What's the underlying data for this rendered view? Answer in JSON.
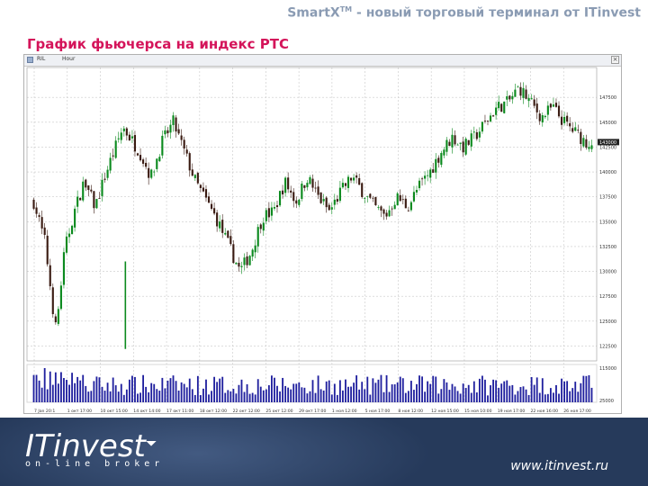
{
  "header": {
    "title": "Smart",
    "title_x": "X",
    "title_tm": "TM",
    "title_rest": " - новый торговый терминал от ITinvest"
  },
  "slide": {
    "subtitle": "График фьючерса на индекс РТС"
  },
  "window": {
    "ticker": "RIL",
    "period": "Hour",
    "close_glyph": "×"
  },
  "chart_data": {
    "type": "candlestick",
    "title": "",
    "y_tick_labels": [
      "147500",
      "145000",
      "142500",
      "140000",
      "137500",
      "135000",
      "132500",
      "130000",
      "127500",
      "125000",
      "122500"
    ],
    "y_tick_values": [
      147500,
      145000,
      142500,
      140000,
      137500,
      135000,
      132500,
      130000,
      127500,
      125000,
      122500
    ],
    "last_price_label": "143000",
    "ylim": [
      121000,
      150500
    ],
    "x_tick_labels": [
      "7 Jan 20:1",
      "1 окт 17:00",
      "10 окт 15:00",
      "14 окт 14:00",
      "17 окт 11:00",
      "18 окт 12:00",
      "22 окт 12:00",
      "25 окт 12:00",
      "29 окт 17:00",
      "1 ноя 12:00",
      "5 ноя 17:00",
      "8 ноя 12:00",
      "12 ноя 15:00",
      "15 ноя 10:00",
      "19 ноя 17:00",
      "22 ноя 16:00",
      "26 ноя 17:00"
    ],
    "volume_top_label": "115000",
    "volume_bottom_label": "25000",
    "grid": true,
    "colors": {
      "up": "#0b8a1e",
      "down": "#3a1b12",
      "volume": "#1f1f9e",
      "grid": "#c9c9c9"
    }
  },
  "footer": {
    "logo": "ITinvest",
    "logo_sub": "on-line broker",
    "url": "www.itinvest.ru"
  }
}
